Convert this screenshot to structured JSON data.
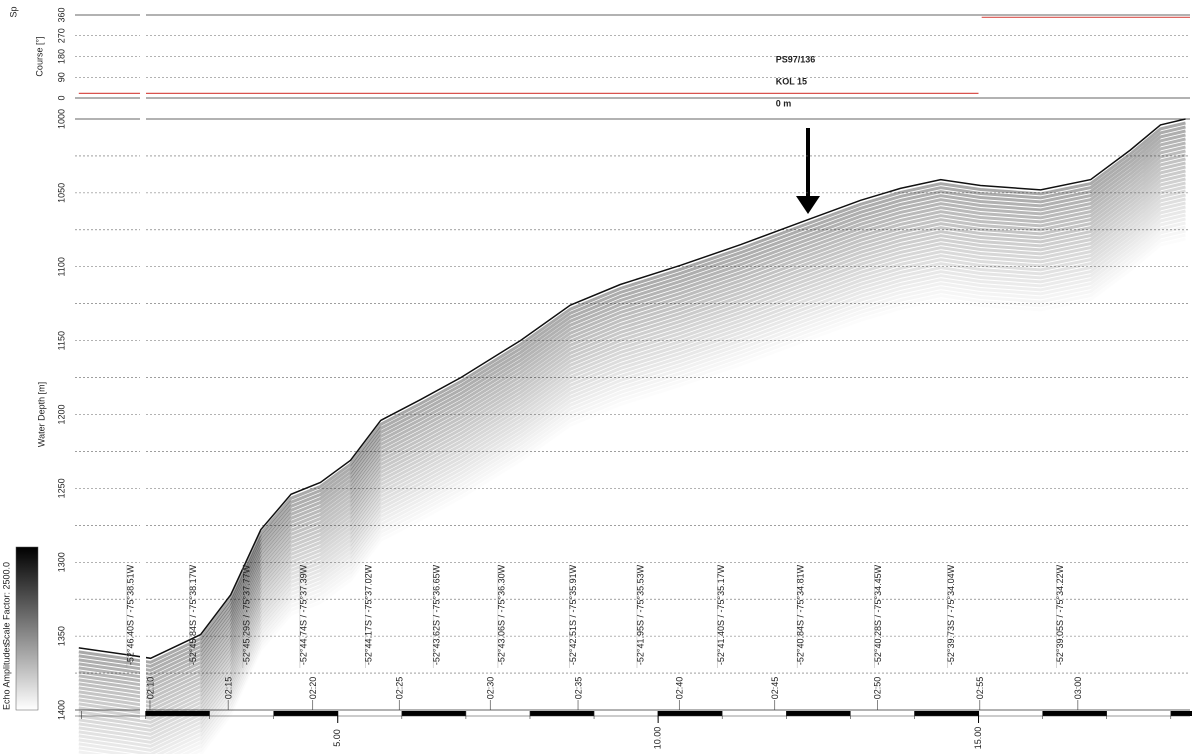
{
  "chart_data": [
    {
      "type": "line",
      "panel": "course",
      "top_label": "Sp",
      "ylabel": "Course [°]",
      "x": [
        0.96,
        15.0,
        15.05,
        15.05,
        18.3
      ],
      "series": [
        {
          "color": "#d9534f",
          "values": [
            20,
            20,
            null,
            350,
            350
          ]
        }
      ],
      "xlim": [
        0.9,
        18.3
      ],
      "ylim": [
        0,
        360
      ],
      "yticks": [
        0,
        90,
        180,
        270,
        360
      ],
      "grid": true
    },
    {
      "type": "line",
      "panel": "echogram",
      "ylabel": "Water Depth [m]",
      "x": [
        0.96,
        1.77,
        2.08,
        2.86,
        3.33,
        3.8,
        4.27,
        4.73,
        5.2,
        5.67,
        6.29,
        6.92,
        7.85,
        8.63,
        9.41,
        10.35,
        11.29,
        12.22,
        13.16,
        13.78,
        14.41,
        15.03,
        15.97,
        16.75,
        17.37,
        17.84,
        18.23
      ],
      "series": [
        {
          "color": "#111111",
          "values": [
            1358,
            1363,
            1365,
            1349,
            1322,
            1278,
            1254,
            1246,
            1231,
            1204,
            1190,
            1175,
            1150,
            1126,
            1112,
            1099,
            1085,
            1070,
            1055,
            1047,
            1041,
            1045,
            1048,
            1041,
            1021,
            1004,
            1000
          ]
        }
      ],
      "xlim": [
        0.9,
        18.3
      ],
      "ylim": [
        1400,
        1000
      ],
      "yticks": [
        1000,
        1050,
        1100,
        1150,
        1200,
        1250,
        1300,
        1350,
        1400
      ],
      "y_minor_ticks": [
        1025,
        1075,
        1125,
        1175,
        1225,
        1275,
        1325,
        1375
      ],
      "xticks": [
        {
          "value": 5,
          "label": "5.00"
        },
        {
          "value": 10,
          "label": "10.00"
        },
        {
          "value": 15,
          "label": "15.00"
        }
      ],
      "grid": true,
      "annotation": {
        "lines": [
          "PS97/136",
          "KOL 15",
          "0 m"
        ],
        "x": 12.35
      },
      "time_marks": [
        {
          "x": 2.07,
          "label": "02:10"
        },
        {
          "x": 3.29,
          "label": "02:15"
        },
        {
          "x": 4.61,
          "label": "02:20"
        },
        {
          "x": 5.96,
          "label": "02:25"
        },
        {
          "x": 7.38,
          "label": "02:30"
        },
        {
          "x": 8.75,
          "label": "02:35"
        },
        {
          "x": 10.33,
          "label": "02:40"
        },
        {
          "x": 11.82,
          "label": "02:45"
        },
        {
          "x": 13.42,
          "label": "02:50"
        },
        {
          "x": 15.02,
          "label": "02:55"
        },
        {
          "x": 16.55,
          "label": "03:00"
        }
      ],
      "position_marks": [
        {
          "x": 1.71,
          "label": "-52°46.40S / -75°38.51W"
        },
        {
          "x": 2.69,
          "label": "-52°45.84S / -75°38.17W"
        },
        {
          "x": 3.52,
          "label": "-52°45.29S / -75°37.77W"
        },
        {
          "x": 4.41,
          "label": "-52°44.74S / -75°37.39W"
        },
        {
          "x": 5.43,
          "label": "-52°44.17S / -75°37.02W"
        },
        {
          "x": 6.49,
          "label": "-52°43.62S / -75°36.65W"
        },
        {
          "x": 7.5,
          "label": "-52°43.06S / -75°36.30W"
        },
        {
          "x": 8.62,
          "label": "-52°42.51S / -75°35.91W"
        },
        {
          "x": 9.67,
          "label": "-52°41.95S / -75°35.53W"
        },
        {
          "x": 10.93,
          "label": "-52°41.40S / -75°35.17W"
        },
        {
          "x": 12.17,
          "label": "-52°40.84S / -75°34.81W"
        },
        {
          "x": 13.38,
          "label": "-52°40.28S / -75°34.45W"
        },
        {
          "x": 14.52,
          "label": "-52°39.73S / -75°34.04W"
        },
        {
          "x": 16.22,
          "label": "-52°39.05S / -75°34.22W"
        }
      ],
      "colorbar": {
        "label": "Echo Amplitudes",
        "scale": "Scale Factor: 2500.0"
      }
    }
  ]
}
